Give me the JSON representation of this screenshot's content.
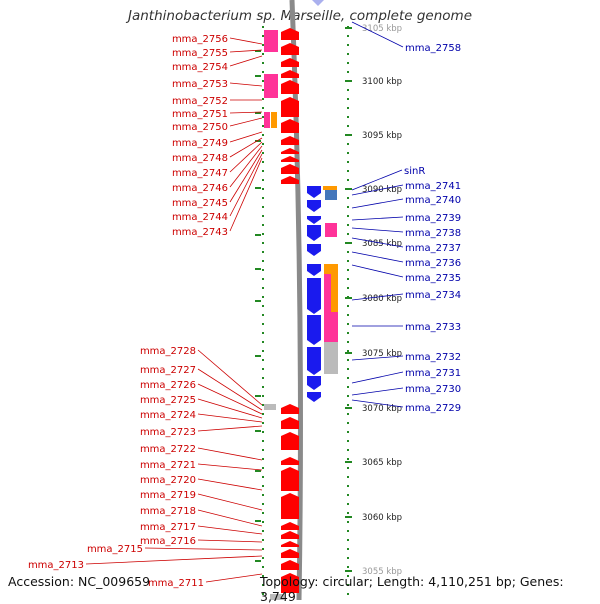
{
  "title": "Janthinobacterium sp. Marseille, complete genome",
  "footer": {
    "accession": "Accession: NC_009659",
    "topology": "Topology: circular; Length: 4,110,251 bp; Genes: 3,749"
  },
  "scale": {
    "unit": "kbp",
    "ticks": [
      "3105 kbp",
      "3100 kbp",
      "3095 kbp",
      "3090 kbp",
      "3085 kbp",
      "3080 kbp",
      "3075 kbp",
      "3070 kbp",
      "3065 kbp",
      "3060 kbp",
      "3055 kbp"
    ]
  },
  "left_labels": [
    "mma_2756",
    "mma_2755",
    "mma_2754",
    "mma_2753",
    "mma_2752",
    "mma_2751",
    "mma_2750",
    "mma_2749",
    "mma_2748",
    "mma_2747",
    "mma_2746",
    "mma_2745",
    "mma_2744",
    "mma_2743",
    "mma_2728",
    "mma_2727",
    "mma_2726",
    "mma_2725",
    "mma_2724",
    "mma_2723",
    "mma_2722",
    "mma_2721",
    "mma_2720",
    "mma_2719",
    "mma_2718",
    "mma_2717",
    "mma_2716",
    "mma_2715",
    "mma_2713",
    "mma_2711"
  ],
  "right_labels": [
    "mma_2758",
    "sinR",
    "mma_2741",
    "mma_2740",
    "mma_2739",
    "mma_2738",
    "mma_2737",
    "mma_2736",
    "mma_2735",
    "mma_2734",
    "mma_2733",
    "mma_2732",
    "mma_2731",
    "mma_2730",
    "mma_2729"
  ],
  "colors": {
    "reverse_strand": "#ff0000",
    "forward_strand": "#1a1aee",
    "pink": "#ff3399",
    "orange": "#ff9900",
    "gray": "#bbbbbb",
    "steelblue": "#4477bb",
    "dots": "#228822",
    "left_label": "#cc0000",
    "right_label": "#0000aa"
  }
}
